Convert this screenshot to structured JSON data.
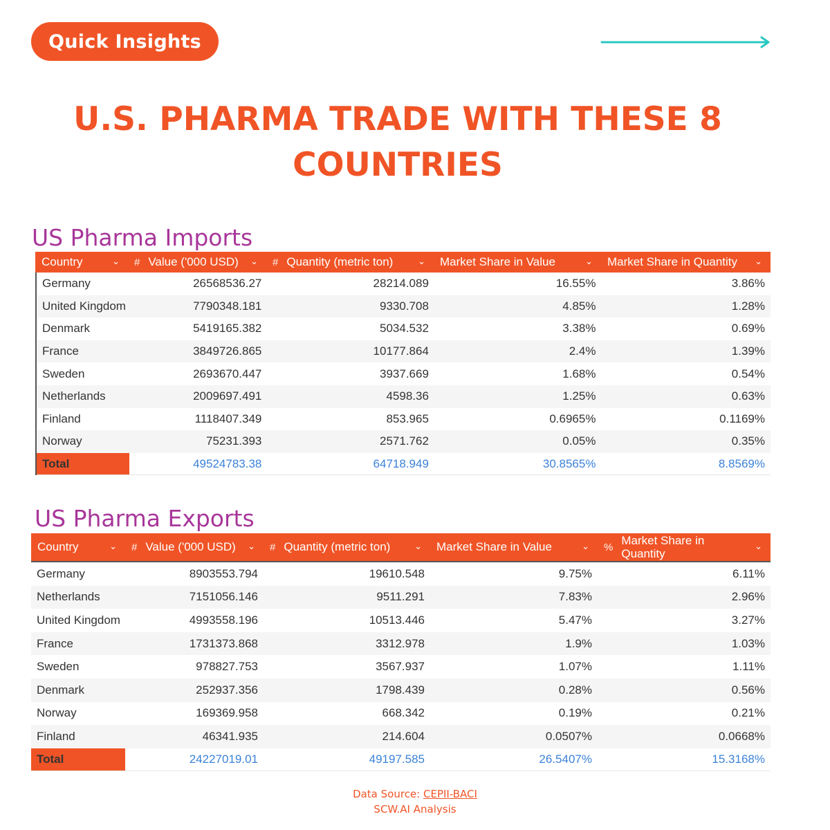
{
  "badge": "Quick Insights",
  "title_line1": "U.S. PHARMA TRADE WITH THESE 8",
  "title_line2": "COUNTRIES",
  "colors": {
    "accent": "#f05426",
    "section_title": "#a8369a",
    "arrow": "#29c8c0",
    "total_values": "#3b82d8"
  },
  "imports": {
    "title": "US Pharma Imports",
    "headers": [
      "Country",
      "Value ('000 USD)",
      "Quantity (metric ton)",
      "Market Share in Value",
      "Market Share in Quantity"
    ],
    "header_marks": [
      "#",
      "#"
    ],
    "rows": [
      [
        "Germany",
        "26568536.27",
        "28214.089",
        "16.55%",
        "3.86%"
      ],
      [
        "United Kingdom",
        "7790348.181",
        "9330.708",
        "4.85%",
        "1.28%"
      ],
      [
        "Denmark",
        "5419165.382",
        "5034.532",
        "3.38%",
        "0.69%"
      ],
      [
        "France",
        "3849726.865",
        "10177.864",
        "2.4%",
        "1.39%"
      ],
      [
        "Sweden",
        "2693670.447",
        "3937.669",
        "1.68%",
        "0.54%"
      ],
      [
        "Netherlands",
        "2009697.491",
        "4598.36",
        "1.25%",
        "0.63%"
      ],
      [
        "Finland",
        "1118407.349",
        "853.965",
        "0.6965%",
        "0.1169%"
      ],
      [
        "Norway",
        "75231.393",
        "2571.762",
        "0.05%",
        "0.35%"
      ]
    ],
    "total": [
      "Total",
      "49524783.38",
      "64718.949",
      "30.8565%",
      "8.8569%"
    ]
  },
  "exports": {
    "title": "US Pharma Exports",
    "headers": [
      "Country",
      "Value ('000 USD)",
      "Quantity (metric ton)",
      "Market Share in Value",
      "Market Share in Quantity"
    ],
    "header_marks": [
      "#",
      "#",
      "%"
    ],
    "rows": [
      [
        "Germany",
        "8903553.794",
        "19610.548",
        "9.75%",
        "6.11%"
      ],
      [
        "Netherlands",
        "7151056.146",
        "9511.291",
        "7.83%",
        "2.96%"
      ],
      [
        "United Kingdom",
        "4993558.196",
        "10513.446",
        "5.47%",
        "3.27%"
      ],
      [
        "France",
        "1731373.868",
        "3312.978",
        "1.9%",
        "1.03%"
      ],
      [
        "Sweden",
        "978827.753",
        "3567.937",
        "1.07%",
        "1.11%"
      ],
      [
        "Denmark",
        "252937.356",
        "1798.439",
        "0.28%",
        "0.56%"
      ],
      [
        "Norway",
        "169369.958",
        "668.342",
        "0.19%",
        "0.21%"
      ],
      [
        "Finland",
        "46341.935",
        "214.604",
        "0.0507%",
        "0.0668%"
      ]
    ],
    "total": [
      "Total",
      "24227019.01",
      "49197.585",
      "26.5407%",
      "15.3168%"
    ]
  },
  "footer": {
    "source_prefix": "Data Source: ",
    "source_link": "CEPII-BACI",
    "analysis": "SCW.AI Analysis"
  }
}
